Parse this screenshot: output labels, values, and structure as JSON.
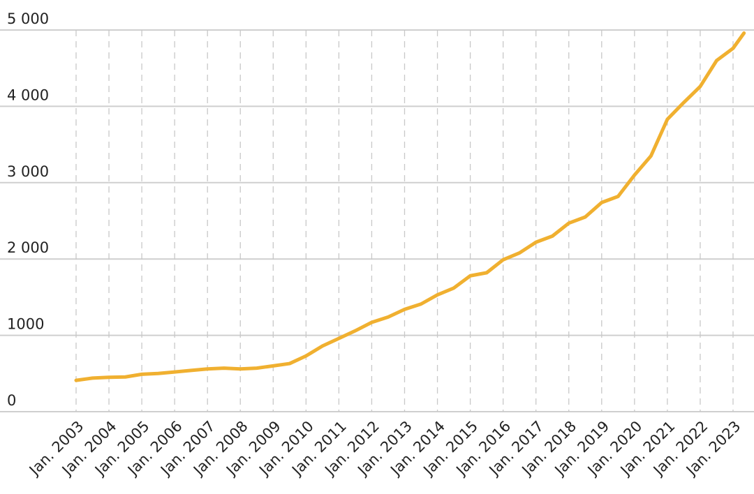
{
  "chart_data": {
    "type": "line",
    "x": [
      "2003-01",
      "2003-07",
      "2004-01",
      "2004-07",
      "2005-01",
      "2005-07",
      "2006-01",
      "2006-07",
      "2007-01",
      "2007-07",
      "2008-01",
      "2008-07",
      "2009-01",
      "2009-07",
      "2010-01",
      "2010-07",
      "2011-01",
      "2011-07",
      "2012-01",
      "2012-07",
      "2013-01",
      "2013-07",
      "2014-01",
      "2014-07",
      "2015-01",
      "2015-07",
      "2016-01",
      "2016-07",
      "2017-01",
      "2017-07",
      "2018-01",
      "2018-07",
      "2019-01",
      "2019-07",
      "2020-01",
      "2020-07",
      "2021-01",
      "2021-07",
      "2022-01",
      "2022-07",
      "2023-01",
      "2023-05"
    ],
    "series": [
      {
        "color": "#f0b030",
        "values": [
          410,
          440,
          450,
          455,
          490,
          500,
          520,
          540,
          560,
          570,
          560,
          570,
          600,
          630,
          730,
          860,
          960,
          1060,
          1170,
          1240,
          1340,
          1410,
          1530,
          1620,
          1780,
          1820,
          1990,
          2080,
          2220,
          2300,
          2470,
          2550,
          2740,
          2820,
          3100,
          3350,
          3830,
          4050,
          4260,
          4600,
          4760,
          4960
        ]
      }
    ],
    "xticks": [
      {
        "value": "2003-01",
        "label": "Jan. 2003"
      },
      {
        "value": "2004-01",
        "label": "Jan. 2004"
      },
      {
        "value": "2005-01",
        "label": "Jan. 2005"
      },
      {
        "value": "2006-01",
        "label": "Jan. 2006"
      },
      {
        "value": "2007-01",
        "label": "Jan. 2007"
      },
      {
        "value": "2008-01",
        "label": "Jan. 2008"
      },
      {
        "value": "2009-01",
        "label": "Jan. 2009"
      },
      {
        "value": "2010-01",
        "label": "Jan. 2010"
      },
      {
        "value": "2011-01",
        "label": "Jan. 2011"
      },
      {
        "value": "2012-01",
        "label": "Jan. 2012"
      },
      {
        "value": "2013-01",
        "label": "Jan. 2013"
      },
      {
        "value": "2014-01",
        "label": "Jan. 2014"
      },
      {
        "value": "2015-01",
        "label": "Jan. 2015"
      },
      {
        "value": "2016-01",
        "label": "Jan. 2016"
      },
      {
        "value": "2017-01",
        "label": "Jan. 2017"
      },
      {
        "value": "2018-01",
        "label": "Jan. 2018"
      },
      {
        "value": "2019-01",
        "label": "Jan. 2019"
      },
      {
        "value": "2020-01",
        "label": "Jan. 2020"
      },
      {
        "value": "2021-01",
        "label": "Jan. 2021"
      },
      {
        "value": "2022-01",
        "label": "Jan. 2022"
      },
      {
        "value": "2023-01",
        "label": "Jan. 2023"
      }
    ],
    "ylim": [
      0,
      5000
    ],
    "yticks": [
      0,
      {
        "value": 1000,
        "label": "1000"
      },
      {
        "value": 2000,
        "label": "2 000"
      },
      {
        "value": 3000,
        "label": "3 000"
      },
      {
        "value": 4000,
        "label": "4 000"
      },
      {
        "value": 5000,
        "label": "5 000"
      }
    ],
    "grid": true
  }
}
